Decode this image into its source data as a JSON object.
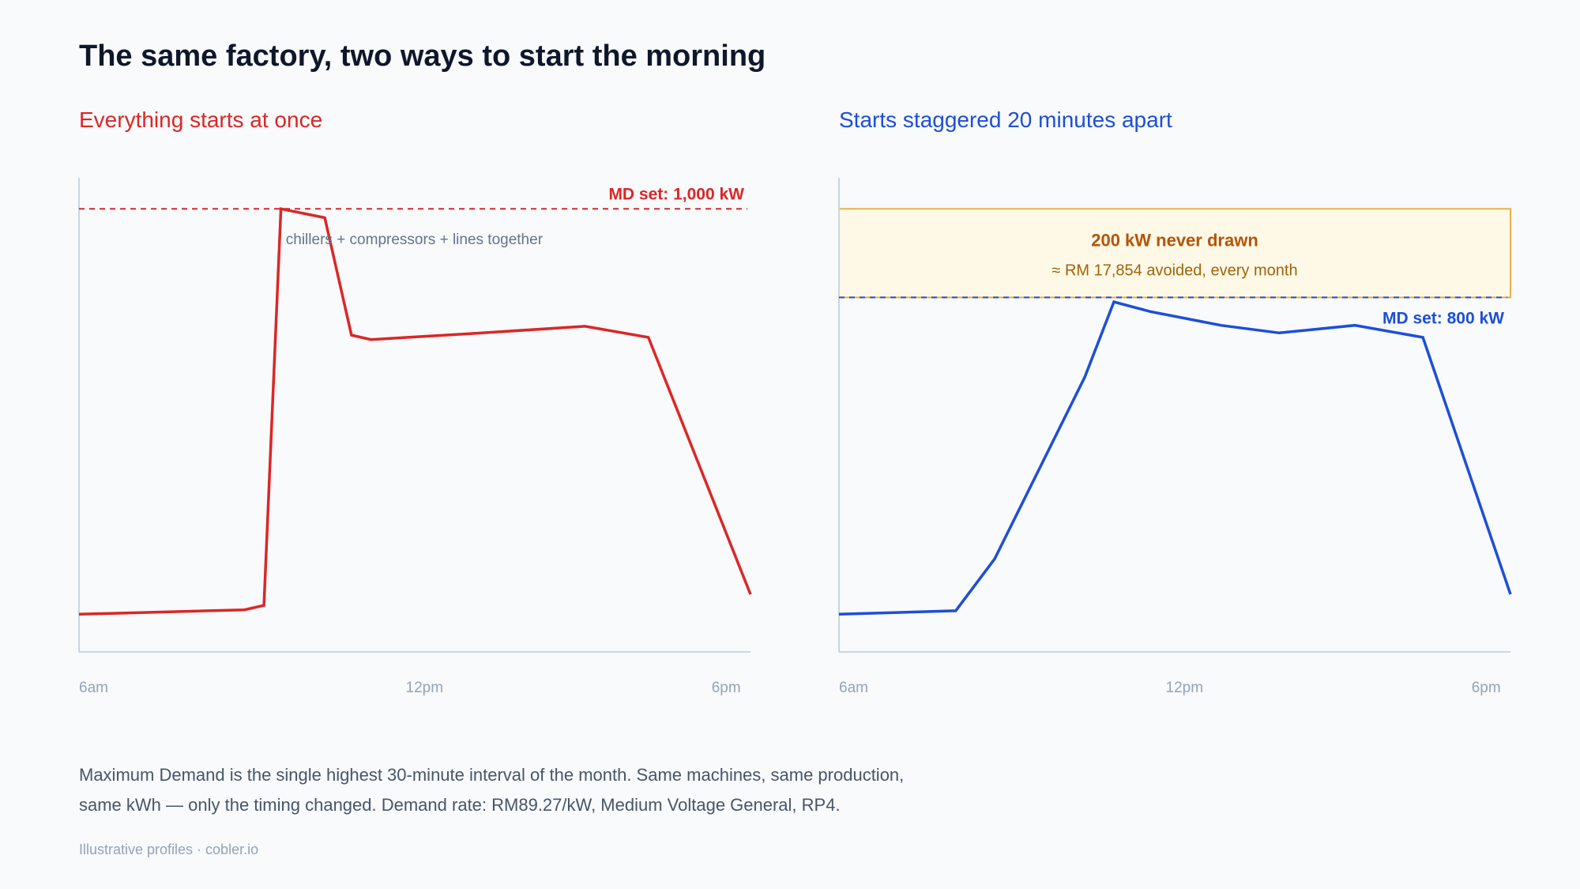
{
  "title": "The same factory, two ways to start the morning",
  "footnote_line1": "Maximum Demand is the single highest 30-minute interval of the month. Same machines, same production,",
  "footnote_line2": "same kWh — only the timing changed. Demand rate: RM89.27/kW, Medium Voltage General, RP4.",
  "source": "Illustrative profiles · cobler.io",
  "colors": {
    "left": "#dc2626",
    "right": "#1d4ed8",
    "axis": "#cbd5e1",
    "tick": "#94a3b8",
    "savings_fill": "#fef9e7",
    "savings_stroke": "#e8b04b",
    "savings_title": "#b45309",
    "savings_text": "#a16207",
    "annotation": "#64748b"
  },
  "chart_data": [
    {
      "type": "line",
      "title": "Everything starts at once",
      "xlabel": "",
      "ylabel": "",
      "x_unit": "hour",
      "xlim": [
        6,
        19.8
      ],
      "ylim": [
        0,
        1070
      ],
      "grid": false,
      "x_ticks": [
        {
          "x": 6,
          "label": "6am"
        },
        {
          "x": 13.1,
          "label": "12pm"
        },
        {
          "x": 19.3,
          "label": "6pm"
        }
      ],
      "series": [
        {
          "x": [
            6.0,
            9.4,
            9.8,
            10.15,
            11.05,
            11.6,
            12.0,
            14.0,
            16.4,
            17.7,
            19.8
          ],
          "y": [
            85,
            95,
            105,
            1000,
            980,
            715,
            705,
            718,
            735,
            710,
            130
          ]
        }
      ],
      "reference_line": {
        "y": 1000,
        "label": "MD set: 1,000 kW"
      },
      "annotation": {
        "text": "chillers + compressors + lines together",
        "x": 10.25,
        "y": 920
      }
    },
    {
      "type": "line",
      "title": "Starts staggered 20 minutes apart",
      "xlabel": "",
      "ylabel": "",
      "x_unit": "hour",
      "xlim": [
        6,
        19.8
      ],
      "ylim": [
        0,
        1070
      ],
      "grid": false,
      "x_ticks": [
        {
          "x": 6,
          "label": "6am"
        },
        {
          "x": 13.1,
          "label": "12pm"
        },
        {
          "x": 19.3,
          "label": "6pm"
        }
      ],
      "series": [
        {
          "x": [
            6.0,
            8.4,
            9.2,
            11.05,
            11.65,
            12.4,
            13.85,
            15.05,
            16.6,
            18.0,
            19.8
          ],
          "y": [
            85,
            93,
            210,
            620,
            790,
            768,
            737,
            720,
            737,
            710,
            130
          ]
        }
      ],
      "reference_line": {
        "y": 800,
        "label": "MD set: 800 kW"
      },
      "savings_band": {
        "from": 800,
        "to": 1000,
        "title": "200 kW never drawn",
        "subtitle": "≈ RM 17,854 avoided, every month"
      }
    }
  ]
}
